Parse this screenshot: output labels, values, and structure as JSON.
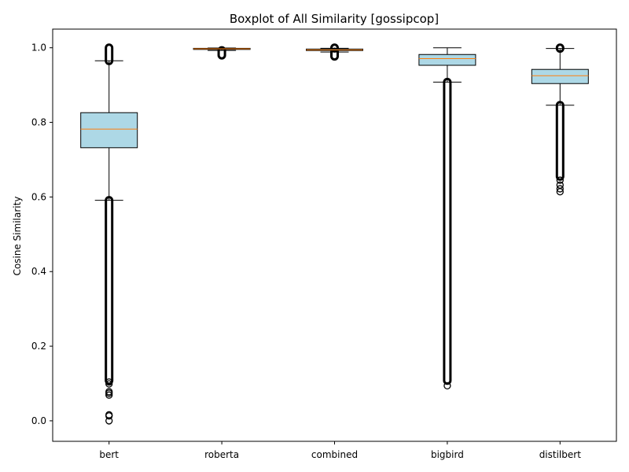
{
  "chart_data": {
    "type": "boxplot",
    "title": "Boxplot of All Similarity [gossipcop]",
    "xlabel": "",
    "ylabel": "Cosine Similarity",
    "ylim": [
      -0.055,
      1.05
    ],
    "yticks": [
      0.0,
      0.2,
      0.4,
      0.6,
      0.8,
      1.0
    ],
    "ytick_labels": [
      "0.0",
      "0.2",
      "0.4",
      "0.6",
      "0.8",
      "1.0"
    ],
    "categories": [
      "bert",
      "roberta",
      "combined",
      "bigbird",
      "distilbert"
    ],
    "grid": false,
    "colors": {
      "box_fill": "#add8e6",
      "median": "#ff7f0e",
      "stroke": "#000000"
    },
    "boxes": [
      {
        "label": "bert",
        "whisker_low": 0.591,
        "q1": 0.732,
        "median": 0.782,
        "q3": 0.826,
        "whisker_high": 0.965,
        "outliers_low_range": [
          0.108,
          0.591
        ],
        "outliers_low_points": [
          0.0,
          0.013,
          0.016,
          0.069,
          0.074,
          0.078,
          0.099,
          0.104
        ],
        "outliers_high_range": [
          0.965,
          1.0
        ]
      },
      {
        "label": "roberta",
        "whisker_low": 0.9927,
        "q1": 0.9955,
        "median": 0.9972,
        "q3": 0.9985,
        "whisker_high": 0.9995,
        "outliers_low_range": [
          0.98,
          0.9927
        ],
        "outliers_low_points": [],
        "outliers_high_range": []
      },
      {
        "label": "combined",
        "whisker_low": 0.9885,
        "q1": 0.9925,
        "median": 0.9945,
        "q3": 0.9965,
        "whisker_high": 0.9985,
        "outliers_low_range": [
          0.977,
          0.9885
        ],
        "outliers_low_points": [],
        "outliers_high_range": [
          0.9985,
          1.0
        ]
      },
      {
        "label": "bigbird",
        "whisker_low": 0.908,
        "q1": 0.953,
        "median": 0.971,
        "q3": 0.982,
        "whisker_high": 1.0,
        "outliers_low_range": [
          0.108,
          0.908
        ],
        "outliers_low_points": [
          0.094
        ],
        "outliers_high_range": []
      },
      {
        "label": "distilbert",
        "whisker_low": 0.846,
        "q1": 0.904,
        "median": 0.925,
        "q3": 0.942,
        "whisker_high": 0.998,
        "outliers_low_range": [
          0.655,
          0.846
        ],
        "outliers_low_points": [
          0.614,
          0.622,
          0.632,
          0.645
        ],
        "outliers_high_range": [
          0.998,
          1.0
        ]
      }
    ]
  }
}
